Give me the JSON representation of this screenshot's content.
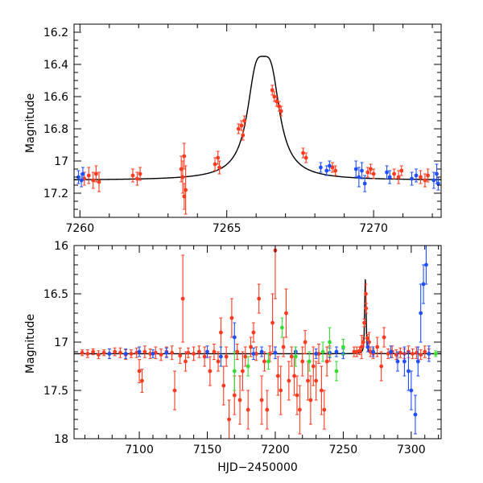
{
  "figure": {
    "xlabel": "HJD−2450000"
  },
  "colors": {
    "red": "#ff3a1f",
    "blue": "#1f4fff",
    "green": "#33dd33",
    "model": "#000000"
  },
  "chart_data": [
    {
      "type": "scatter",
      "title": "",
      "xlabel": "",
      "ylabel": "Magnitude",
      "xlim": [
        7259.8,
        7272.3
      ],
      "ylim": [
        17.35,
        16.15
      ],
      "inverted_y": true,
      "grid": false,
      "xticks": [
        7260,
        7265,
        7270
      ],
      "xtick_labels": [
        "7260",
        "7265",
        "7270"
      ],
      "yticks": [
        16.2,
        16.4,
        16.6,
        16.8,
        17.0,
        17.2
      ],
      "ytick_labels": [
        "16.2",
        "16.4",
        "16.6",
        "16.8",
        "17",
        "17.2"
      ],
      "model": {
        "name": "",
        "baseline": 17.12,
        "peak_x": 7266.25,
        "peak_y": 16.35,
        "x_range": [
          7259.8,
          7272.3
        ]
      },
      "series": [
        {
          "color": "red",
          "points": [
            [
              7260.15,
              17.11,
              0.04
            ],
            [
              7260.3,
              17.09,
              0.05
            ],
            [
              7260.45,
              17.12,
              0.05
            ],
            [
              7260.55,
              17.08,
              0.05
            ],
            [
              7260.65,
              17.13,
              0.06
            ],
            [
              7261.8,
              17.09,
              0.04
            ],
            [
              7261.95,
              17.11,
              0.04
            ],
            [
              7262.05,
              17.08,
              0.04
            ],
            [
              7263.45,
              17.05,
              0.08
            ],
            [
              7263.5,
              17.1,
              0.1
            ],
            [
              7263.55,
              16.97,
              0.08
            ],
            [
              7263.6,
              17.18,
              0.15
            ],
            [
              7263.55,
              17.22,
              0.08
            ],
            [
              7264.6,
              17.02,
              0.04
            ],
            [
              7264.7,
              16.98,
              0.04
            ],
            [
              7264.75,
              17.04,
              0.04
            ],
            [
              7265.4,
              16.8,
              0.03
            ],
            [
              7265.5,
              16.78,
              0.03
            ],
            [
              7265.6,
              16.75,
              0.03
            ],
            [
              7265.55,
              16.84,
              0.03
            ],
            [
              7266.55,
              16.56,
              0.03
            ],
            [
              7266.62,
              16.6,
              0.03
            ],
            [
              7266.7,
              16.63,
              0.03
            ],
            [
              7266.78,
              16.66,
              0.03
            ],
            [
              7266.85,
              16.69,
              0.03
            ],
            [
              7267.6,
              16.95,
              0.03
            ],
            [
              7267.7,
              16.98,
              0.03
            ],
            [
              7268.6,
              17.04,
              0.03
            ],
            [
              7268.7,
              17.06,
              0.03
            ],
            [
              7269.8,
              17.07,
              0.03
            ],
            [
              7269.9,
              17.05,
              0.03
            ],
            [
              7270.0,
              17.08,
              0.03
            ],
            [
              7270.7,
              17.08,
              0.03
            ],
            [
              7270.85,
              17.1,
              0.04
            ],
            [
              7270.95,
              17.06,
              0.03
            ],
            [
              7271.6,
              17.1,
              0.04
            ],
            [
              7271.75,
              17.12,
              0.04
            ],
            [
              7271.85,
              17.09,
              0.04
            ]
          ]
        },
        {
          "color": "blue",
          "points": [
            [
              7259.95,
              17.1,
              0.04
            ],
            [
              7260.05,
              17.12,
              0.04
            ],
            [
              7260.1,
              17.08,
              0.04
            ],
            [
              7268.2,
              17.04,
              0.03
            ],
            [
              7268.4,
              17.06,
              0.03
            ],
            [
              7268.5,
              17.03,
              0.03
            ],
            [
              7269.4,
              17.05,
              0.05
            ],
            [
              7269.5,
              17.1,
              0.06
            ],
            [
              7269.6,
              17.06,
              0.05
            ],
            [
              7269.7,
              17.14,
              0.05
            ],
            [
              7270.45,
              17.07,
              0.04
            ],
            [
              7270.55,
              17.1,
              0.04
            ],
            [
              7271.3,
              17.11,
              0.04
            ],
            [
              7271.45,
              17.09,
              0.04
            ],
            [
              7272.05,
              17.12,
              0.05
            ],
            [
              7272.15,
              17.08,
              0.06
            ],
            [
              7272.2,
              17.14,
              0.04
            ]
          ]
        }
      ]
    },
    {
      "type": "scatter",
      "title": "",
      "xlabel": "HJD−2450000",
      "ylabel": "Magnitude",
      "xlim": [
        7052,
        7322
      ],
      "ylim": [
        18.0,
        16.0
      ],
      "inverted_y": true,
      "grid": false,
      "xticks": [
        7100,
        7150,
        7200,
        7250,
        7300
      ],
      "xtick_labels": [
        "7100",
        "7150",
        "7200",
        "7250",
        "7300"
      ],
      "yticks": [
        16.0,
        16.5,
        17.0,
        17.5,
        18.0
      ],
      "ytick_labels": [
        "16",
        "16.5",
        "17",
        "17.5",
        "18"
      ],
      "model": {
        "name": "",
        "baseline": 17.12,
        "peak_x": 7266.25,
        "peak_y": 16.35,
        "x_range": [
          7052,
          7322
        ]
      },
      "series": [
        {
          "color": "red",
          "points": [
            [
              7058,
              17.11,
              0.03
            ],
            [
              7062,
              17.12,
              0.04
            ],
            [
              7066,
              17.1,
              0.03
            ],
            [
              7070,
              17.13,
              0.04
            ],
            [
              7074,
              17.11,
              0.03
            ],
            [
              7078,
              17.12,
              0.05
            ],
            [
              7082,
              17.1,
              0.04
            ],
            [
              7086,
              17.11,
              0.05
            ],
            [
              7090,
              17.13,
              0.05
            ],
            [
              7094,
              17.12,
              0.04
            ],
            [
              7098,
              17.11,
              0.05
            ],
            [
              7100,
              17.3,
              0.12
            ],
            [
              7102,
              17.4,
              0.12
            ],
            [
              7104,
              17.1,
              0.06
            ],
            [
              7108,
              17.12,
              0.05
            ],
            [
              7112,
              17.11,
              0.06
            ],
            [
              7116,
              17.13,
              0.06
            ],
            [
              7120,
              17.1,
              0.05
            ],
            [
              7124,
              17.11,
              0.07
            ],
            [
              7126,
              17.5,
              0.2
            ],
            [
              7130,
              17.14,
              0.08
            ],
            [
              7132,
              16.55,
              0.45
            ],
            [
              7134,
              17.2,
              0.1
            ],
            [
              7136,
              17.11,
              0.05
            ],
            [
              7140,
              17.12,
              0.07
            ],
            [
              7144,
              17.1,
              0.06
            ],
            [
              7148,
              17.15,
              0.1
            ],
            [
              7152,
              17.3,
              0.15
            ],
            [
              7155,
              17.1,
              0.08
            ],
            [
              7158,
              17.2,
              0.1
            ],
            [
              7160,
              16.9,
              0.15
            ],
            [
              7162,
              17.45,
              0.2
            ],
            [
              7164,
              17.15,
              0.1
            ],
            [
              7166,
              17.8,
              0.2
            ],
            [
              7168,
              16.75,
              0.2
            ],
            [
              7170,
              17.55,
              0.2
            ],
            [
              7172,
              17.1,
              0.08
            ],
            [
              7174,
              17.6,
              0.25
            ],
            [
              7176,
              17.3,
              0.2
            ],
            [
              7178,
              17.15,
              0.1
            ],
            [
              7180,
              17.7,
              0.2
            ],
            [
              7182,
              17.05,
              0.1
            ],
            [
              7184,
              16.9,
              0.1
            ],
            [
              7186,
              17.12,
              0.07
            ],
            [
              7188,
              16.55,
              0.15
            ],
            [
              7190,
              17.6,
              0.25
            ],
            [
              7192,
              17.2,
              0.1
            ],
            [
              7194,
              17.7,
              0.2
            ],
            [
              7196,
              17.12,
              0.08
            ],
            [
              7198,
              16.8,
              0.3
            ],
            [
              7200,
              16.05,
              0.5
            ],
            [
              7202,
              17.35,
              0.2
            ],
            [
              7204,
              17.5,
              0.25
            ],
            [
              7206,
              17.05,
              0.1
            ],
            [
              7208,
              16.7,
              0.25
            ],
            [
              7210,
              17.4,
              0.2
            ],
            [
              7212,
              17.15,
              0.1
            ],
            [
              7214,
              17.35,
              0.2
            ],
            [
              7216,
              17.55,
              0.2
            ],
            [
              7218,
              17.7,
              0.25
            ],
            [
              7220,
              17.2,
              0.15
            ],
            [
              7222,
              17.0,
              0.12
            ],
            [
              7224,
              17.4,
              0.2
            ],
            [
              7226,
              17.6,
              0.25
            ],
            [
              7228,
              17.25,
              0.2
            ],
            [
              7230,
              17.4,
              0.2
            ],
            [
              7232,
              17.12,
              0.1
            ],
            [
              7234,
              17.5,
              0.25
            ],
            [
              7236,
              17.7,
              0.2
            ],
            [
              7238,
              17.2,
              0.15
            ],
            [
              7240,
              17.12,
              0.08
            ],
            [
              7258,
              17.1,
              0.05
            ],
            [
              7260,
              17.1,
              0.05
            ],
            [
              7262,
              17.09,
              0.04
            ],
            [
              7263.5,
              17.05,
              0.12
            ],
            [
              7264.7,
              17.0,
              0.05
            ],
            [
              7265.5,
              16.8,
              0.04
            ],
            [
              7266.6,
              16.5,
              0.1
            ],
            [
              7266.8,
              16.65,
              0.05
            ],
            [
              7267.7,
              16.96,
              0.04
            ],
            [
              7269,
              17.0,
              0.1
            ],
            [
              7270,
              17.1,
              0.05
            ],
            [
              7272,
              17.12,
              0.05
            ],
            [
              7275,
              17.05,
              0.1
            ],
            [
              7278,
              17.25,
              0.15
            ],
            [
              7280,
              16.95,
              0.1
            ],
            [
              7283,
              17.12,
              0.05
            ],
            [
              7286,
              17.1,
              0.06
            ],
            [
              7289,
              17.13,
              0.05
            ],
            [
              7292,
              17.11,
              0.05
            ],
            [
              7295,
              17.12,
              0.05
            ],
            [
              7298,
              17.1,
              0.06
            ],
            [
              7301,
              17.12,
              0.05
            ],
            [
              7304,
              17.11,
              0.06
            ],
            [
              7307,
              17.13,
              0.05
            ],
            [
              7310,
              17.1,
              0.06
            ],
            [
              7313,
              17.12,
              0.05
            ]
          ]
        },
        {
          "color": "blue",
          "points": [
            [
              7078,
              17.12,
              0.05
            ],
            [
              7090,
              17.12,
              0.05
            ],
            [
              7100,
              17.1,
              0.05
            ],
            [
              7110,
              17.12,
              0.04
            ],
            [
              7120,
              17.11,
              0.05
            ],
            [
              7150,
              17.1,
              0.06
            ],
            [
              7160,
              17.15,
              0.1
            ],
            [
              7170,
              16.95,
              0.15
            ],
            [
              7184,
              17.12,
              0.06
            ],
            [
              7190,
              17.1,
              0.05
            ],
            [
              7200,
              17.11,
              0.06
            ],
            [
              7215,
              17.1,
              0.05
            ],
            [
              7230,
              17.12,
              0.05
            ],
            [
              7240,
              17.11,
              0.05
            ],
            [
              7245,
              17.1,
              0.05
            ],
            [
              7250,
              17.12,
              0.05
            ],
            [
              7268,
              17.05,
              0.05
            ],
            [
              7272,
              17.1,
              0.05
            ],
            [
              7285,
              17.1,
              0.06
            ],
            [
              7290,
              17.2,
              0.1
            ],
            [
              7295,
              17.2,
              0.15
            ],
            [
              7298,
              17.3,
              0.2
            ],
            [
              7300,
              17.5,
              0.2
            ],
            [
              7303,
              17.75,
              0.2
            ],
            [
              7305,
              17.2,
              0.15
            ],
            [
              7307,
              16.7,
              0.3
            ],
            [
              7309,
              16.4,
              0.2
            ],
            [
              7311,
              16.2,
              0.2
            ],
            [
              7313,
              17.12,
              0.08
            ]
          ]
        },
        {
          "color": "green",
          "points": [
            [
              7170,
              17.3,
              0.2
            ],
            [
              7180,
              17.25,
              0.1
            ],
            [
              7195,
              17.2,
              0.08
            ],
            [
              7205,
              16.85,
              0.1
            ],
            [
              7215,
              17.15,
              0.1
            ],
            [
              7225,
              17.2,
              0.1
            ],
            [
              7235,
              17.1,
              0.1
            ],
            [
              7240,
              17.0,
              0.15
            ],
            [
              7245,
              17.3,
              0.1
            ],
            [
              7250,
              17.05,
              0.08
            ],
            [
              7318,
              17.12,
              0.03
            ]
          ]
        }
      ]
    }
  ]
}
